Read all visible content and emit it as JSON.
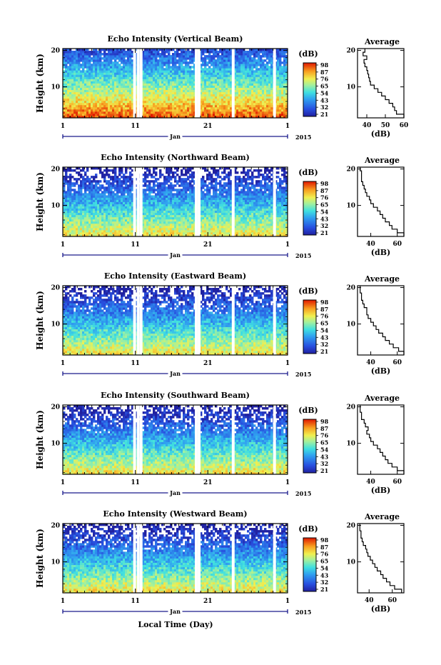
{
  "figure": {
    "xlabel": "Local Time (Day)",
    "unit_label": "(dB)",
    "month_label": "Jan",
    "year_label": "2015",
    "x_tick_labels": [
      "1",
      "11",
      "21",
      "1"
    ],
    "y_tick_labels": [
      "10",
      "20"
    ],
    "colorbar_labels": [
      "98",
      "87",
      "76",
      "65",
      "54",
      "43",
      "32",
      "21"
    ],
    "colors": {
      "low": "#3030c8",
      "mid": "#40d0e0",
      "high_warm": "#f0e040",
      "max": "#e02000",
      "axis": "#000000",
      "bracket": "#1a1a8c"
    }
  },
  "chart_data": [
    {
      "type": "heatmap",
      "title": "Echo Intensity (Vertical Beam)",
      "ylabel": "Height (km)",
      "xlim": [
        1,
        32
      ],
      "ylim": [
        1.5,
        20.5
      ],
      "zlim": [
        21,
        98
      ],
      "x_ticks": [
        1,
        11,
        21,
        32
      ],
      "y_ticks": [
        10,
        20
      ],
      "gap_days": [
        10.9,
        11.4,
        11.8,
        19.4,
        19.8,
        24.5,
        30.2
      ],
      "profile": {
        "title": "Average",
        "xlabel": "(dB)",
        "xlim": [
          35,
          60
        ],
        "xtick_labels": [
          "40",
          "50",
          "60"
        ],
        "xticks": [
          40,
          50,
          60
        ],
        "ylim": [
          1.5,
          20.5
        ],
        "y_ticks": [
          10,
          20
        ],
        "height_km": [
          2,
          3,
          4,
          5,
          6,
          7,
          8,
          9,
          10,
          11,
          12,
          13,
          14,
          15,
          16,
          17,
          18,
          19,
          20
        ],
        "avg_db": [
          60,
          56,
          55,
          54,
          52,
          50,
          48,
          46,
          44,
          42,
          41.5,
          41,
          40.5,
          40,
          39,
          38.5,
          40,
          38,
          39
        ]
      }
    },
    {
      "type": "heatmap",
      "title": "Echo Intensity (Northward Beam)",
      "ylabel": "Height (km)",
      "xlim": [
        1,
        32
      ],
      "ylim": [
        1.5,
        20.5
      ],
      "zlim": [
        21,
        98
      ],
      "x_ticks": [
        1,
        11,
        21,
        32
      ],
      "y_ticks": [
        10,
        20
      ],
      "gap_days": [
        10.9,
        11.4,
        11.8,
        19.4,
        19.8,
        24.5,
        30.2
      ],
      "profile": {
        "title": "Average",
        "xlabel": "(dB)",
        "xlim": [
          30,
          65
        ],
        "xtick_labels": [
          "40",
          "60"
        ],
        "xticks": [
          40,
          60
        ],
        "ylim": [
          1.5,
          20.5
        ],
        "y_ticks": [
          10,
          20
        ],
        "height_km": [
          2,
          3,
          4,
          5,
          6,
          7,
          8,
          9,
          10,
          11,
          12,
          13,
          14,
          15,
          16,
          17,
          18,
          19,
          20
        ],
        "avg_db": [
          65,
          60,
          56,
          54,
          51,
          49,
          47,
          45,
          42,
          40,
          39,
          37,
          36,
          35,
          34,
          33,
          33,
          33,
          32
        ]
      }
    },
    {
      "type": "heatmap",
      "title": "Echo Intensity (Eastward Beam)",
      "ylabel": "Height (km)",
      "xlim": [
        1,
        32
      ],
      "ylim": [
        1.5,
        20.5
      ],
      "zlim": [
        21,
        98
      ],
      "x_ticks": [
        1,
        11,
        21,
        32
      ],
      "y_ticks": [
        10,
        20
      ],
      "gap_days": [
        10.9,
        11.4,
        11.8,
        19.4,
        19.8,
        24.5,
        30.2
      ],
      "profile": {
        "title": "Average",
        "xlabel": "(dB)",
        "xlim": [
          30,
          65
        ],
        "xtick_labels": [
          "40",
          "60"
        ],
        "xticks": [
          40,
          60
        ],
        "ylim": [
          1.5,
          20.5
        ],
        "y_ticks": [
          10,
          20
        ],
        "height_km": [
          2,
          3,
          4,
          5,
          6,
          7,
          8,
          9,
          10,
          11,
          12,
          13,
          14,
          15,
          16,
          17,
          18,
          19,
          20
        ],
        "avg_db": [
          65,
          61,
          57,
          54,
          51,
          49,
          46,
          44,
          42,
          40,
          38,
          37,
          37,
          35,
          34,
          33,
          33,
          32,
          32
        ]
      }
    },
    {
      "type": "heatmap",
      "title": "Echo Intensity (Southward Beam)",
      "ylabel": "Height (km)",
      "xlim": [
        1,
        32
      ],
      "ylim": [
        1.5,
        20.5
      ],
      "zlim": [
        21,
        98
      ],
      "x_ticks": [
        1,
        11,
        21,
        32
      ],
      "y_ticks": [
        10,
        20
      ],
      "gap_days": [
        10.9,
        11.4,
        11.8,
        19.4,
        19.8,
        24.5,
        30.2
      ],
      "profile": {
        "title": "Average",
        "xlabel": "(dB)",
        "xlim": [
          30,
          65
        ],
        "xtick_labels": [
          "40",
          "60"
        ],
        "xticks": [
          40,
          60
        ],
        "ylim": [
          1.5,
          20.5
        ],
        "y_ticks": [
          10,
          20
        ],
        "height_km": [
          2,
          3,
          4,
          5,
          6,
          7,
          8,
          9,
          10,
          11,
          12,
          13,
          14,
          15,
          16,
          17,
          18,
          19,
          20
        ],
        "avg_db": [
          65,
          60,
          56,
          53,
          51,
          49,
          47,
          45,
          42,
          40,
          39,
          37,
          38,
          36,
          35,
          33,
          33,
          32,
          32
        ]
      }
    },
    {
      "type": "heatmap",
      "title": "Echo Intensity (Westward Beam)",
      "ylabel": "Height (km)",
      "xlim": [
        1,
        32
      ],
      "ylim": [
        1.5,
        20.5
      ],
      "zlim": [
        21,
        98
      ],
      "x_ticks": [
        1,
        11,
        21,
        32
      ],
      "y_ticks": [
        10,
        20
      ],
      "gap_days": [
        10.9,
        11.4,
        11.8,
        19.4,
        19.8,
        24.5,
        30.2
      ],
      "profile": {
        "title": "Average",
        "xlabel": "(dB)",
        "xlim": [
          30,
          70
        ],
        "xtick_labels": [
          "40",
          "60"
        ],
        "xticks": [
          40,
          60
        ],
        "ylim": [
          1.5,
          20.5
        ],
        "y_ticks": [
          10,
          20
        ],
        "height_km": [
          2,
          3,
          4,
          5,
          6,
          7,
          8,
          9,
          10,
          11,
          12,
          13,
          14,
          15,
          16,
          17,
          18,
          19,
          20
        ],
        "avg_db": [
          68,
          62,
          58,
          55,
          52,
          50,
          47,
          45,
          43,
          41,
          39,
          38,
          37,
          35,
          34,
          33,
          33,
          32,
          32
        ]
      }
    }
  ]
}
